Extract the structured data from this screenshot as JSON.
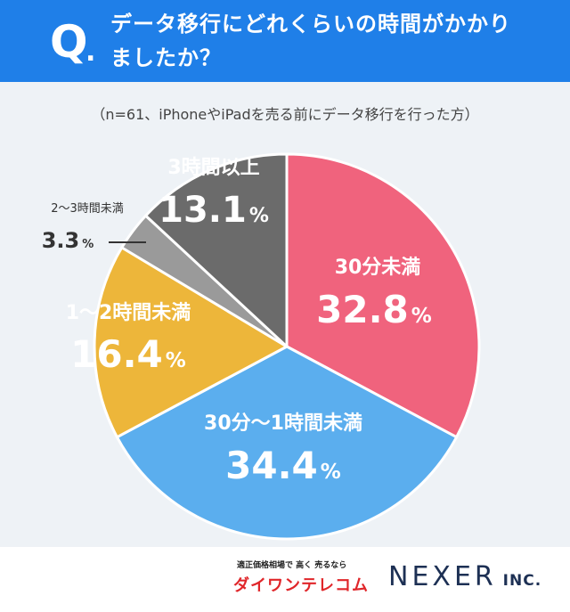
{
  "header": {
    "q_mark": "Q",
    "q_dot": ".",
    "question": "データ移行にどれくらいの時間がかかりましたか？",
    "bg_color": "#1f7fe8"
  },
  "note": "（n=61、iPhoneやiPadを売る前にデータ移行を行った方）",
  "chart_data": {
    "type": "pie",
    "title": "",
    "slices": [
      {
        "label": "30分未満",
        "value": 32.8,
        "display": "32.8",
        "unit": "%",
        "color": "#f0637d",
        "label_color": "#ffffff"
      },
      {
        "label": "30分～1時間未満",
        "value": 34.4,
        "display": "34.4",
        "unit": "%",
        "color": "#5baeee",
        "label_color": "#ffffff"
      },
      {
        "label": "1～2時間未満",
        "value": 16.4,
        "display": "16.4",
        "unit": "%",
        "color": "#edb63a",
        "label_color": "#ffffff"
      },
      {
        "label": "2～3時間未満",
        "value": 3.3,
        "display": "3.3",
        "unit": "%",
        "color": "#9a9a9a",
        "label_color": "#333333"
      },
      {
        "label": "3時間以上",
        "value": 13.1,
        "display": "13.1",
        "unit": "%",
        "color": "#6b6b6b",
        "label_color": "#ffffff"
      }
    ]
  },
  "footer": {
    "logo1_top": "適正価格相場で 高く 売るなら",
    "logo1_name": "ダイワンテレコム",
    "logo2_name": "NEXER",
    "logo2_suffix": " INC."
  }
}
